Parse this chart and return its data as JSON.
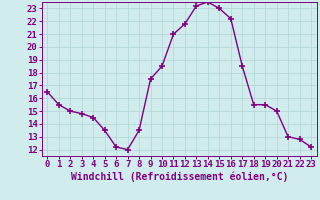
{
  "x": [
    0,
    1,
    2,
    3,
    4,
    5,
    6,
    7,
    8,
    9,
    10,
    11,
    12,
    13,
    14,
    15,
    16,
    17,
    18,
    19,
    20,
    21,
    22,
    23
  ],
  "y": [
    16.5,
    15.5,
    15.0,
    14.8,
    14.5,
    13.5,
    12.2,
    12.0,
    13.5,
    17.5,
    18.5,
    21.0,
    21.8,
    23.2,
    23.5,
    23.0,
    22.2,
    18.5,
    15.5,
    15.5,
    15.0,
    13.0,
    12.8,
    12.2
  ],
  "line_color": "#800080",
  "marker": "+",
  "marker_color": "#800080",
  "bg_color": "#d0ecec",
  "grid_color": "#b0d4d4",
  "xlabel": "Windchill (Refroidissement éolien,°C)",
  "xlim": [
    -0.5,
    23.5
  ],
  "ylim": [
    11.5,
    23.5
  ],
  "yticks": [
    12,
    13,
    14,
    15,
    16,
    17,
    18,
    19,
    20,
    21,
    22,
    23
  ],
  "xticks": [
    0,
    1,
    2,
    3,
    4,
    5,
    6,
    7,
    8,
    9,
    10,
    11,
    12,
    13,
    14,
    15,
    16,
    17,
    18,
    19,
    20,
    21,
    22,
    23
  ],
  "tick_color": "#800080",
  "label_color": "#800080",
  "font_size": 6.5,
  "xlabel_fontsize": 7,
  "line_width": 1.0,
  "marker_size": 4
}
